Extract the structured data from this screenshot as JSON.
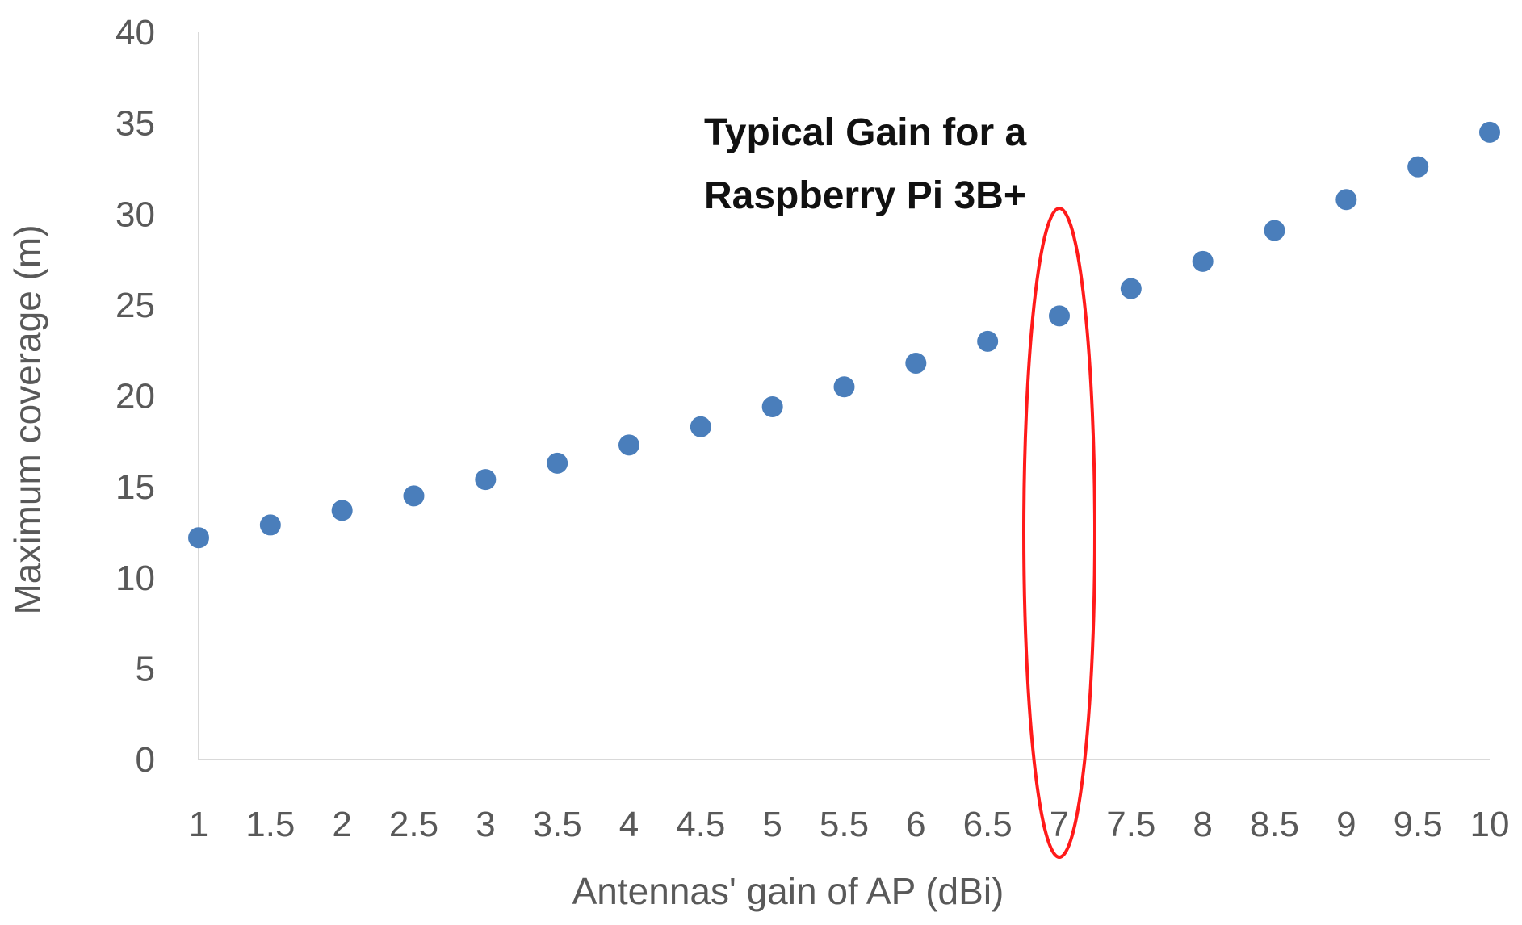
{
  "chart_data": {
    "type": "scatter",
    "title": "",
    "xlabel": "Antennas' gain of AP (dBi)",
    "ylabel": "Maximum coverage (m)",
    "x_ticks": [
      "1",
      "1.5",
      "2",
      "2.5",
      "3",
      "3.5",
      "4",
      "4.5",
      "5",
      "5.5",
      "6",
      "6.5",
      "7",
      "7.5",
      "8",
      "8.5",
      "9",
      "9.5",
      "10"
    ],
    "y_ticks": [
      "0",
      "5",
      "10",
      "15",
      "20",
      "25",
      "30",
      "35",
      "40"
    ],
    "xlim": [
      1,
      10
    ],
    "ylim": [
      0,
      40
    ],
    "grid": false,
    "series": [
      {
        "name": "Maximum coverage",
        "color": "#4a7ebb",
        "points": [
          {
            "x": 1,
            "y": 12.2
          },
          {
            "x": 1.5,
            "y": 12.9
          },
          {
            "x": 2,
            "y": 13.7
          },
          {
            "x": 2.5,
            "y": 14.5
          },
          {
            "x": 3,
            "y": 15.4
          },
          {
            "x": 3.5,
            "y": 16.3
          },
          {
            "x": 4,
            "y": 17.3
          },
          {
            "x": 4.5,
            "y": 18.3
          },
          {
            "x": 5,
            "y": 19.4
          },
          {
            "x": 5.5,
            "y": 20.5
          },
          {
            "x": 6,
            "y": 21.8
          },
          {
            "x": 6.5,
            "y": 23.0
          },
          {
            "x": 7,
            "y": 24.4
          },
          {
            "x": 7.5,
            "y": 25.9
          },
          {
            "x": 8,
            "y": 27.4
          },
          {
            "x": 8.5,
            "y": 29.1
          },
          {
            "x": 9,
            "y": 30.8
          },
          {
            "x": 9.5,
            "y": 32.6
          },
          {
            "x": 10,
            "y": 34.5
          }
        ]
      }
    ],
    "annotation": {
      "lines": [
        "Typical Gain for a",
        "Raspberry Pi 3B+"
      ],
      "highlight_x": 7,
      "highlight_color": "#ff1a1a"
    },
    "axis_color": "#d9d9d9"
  }
}
